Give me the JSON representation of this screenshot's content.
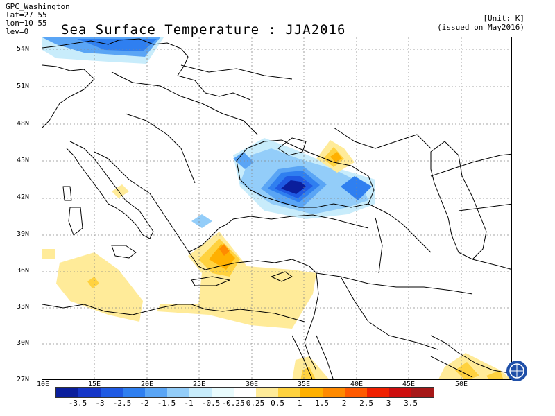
{
  "meta": {
    "source": "GPC_Washington",
    "lat": "lat=27 55",
    "lon": "lon=10 55",
    "lev": "lev=0"
  },
  "title": "Sea Surface Temperature : JJA2016",
  "unit_label": "[Unit: K]",
  "issued": "(issued on May2016)",
  "lat_labels": [
    "54N",
    "51N",
    "48N",
    "45N",
    "42N",
    "39N",
    "36N",
    "33N",
    "30N",
    "27N"
  ],
  "lon_labels": [
    "10E",
    "15E",
    "20E",
    "25E",
    "30E",
    "35E",
    "40E",
    "45E",
    "50E"
  ],
  "colorbar": {
    "colors": [
      "#0a1e9c",
      "#1536c8",
      "#1f5ae3",
      "#2f7ff0",
      "#5aa5f5",
      "#93cdf9",
      "#c8ecfb",
      "#e9fbfd",
      "#ffffff",
      "#ffeb99",
      "#ffd23f",
      "#ffb000",
      "#ff8a00",
      "#ff5a00",
      "#f02000",
      "#cc0e0e",
      "#a61818"
    ],
    "labels": [
      "-3.5",
      "-3",
      "-2.5",
      "-2",
      "-1.5",
      "-1",
      "-0.5",
      "-0.25",
      "0.25",
      "0.5",
      "1",
      "1.5",
      "2",
      "2.5",
      "3",
      "3.5"
    ]
  },
  "colors": {
    "coast": "#000000",
    "grid": "#888888"
  }
}
